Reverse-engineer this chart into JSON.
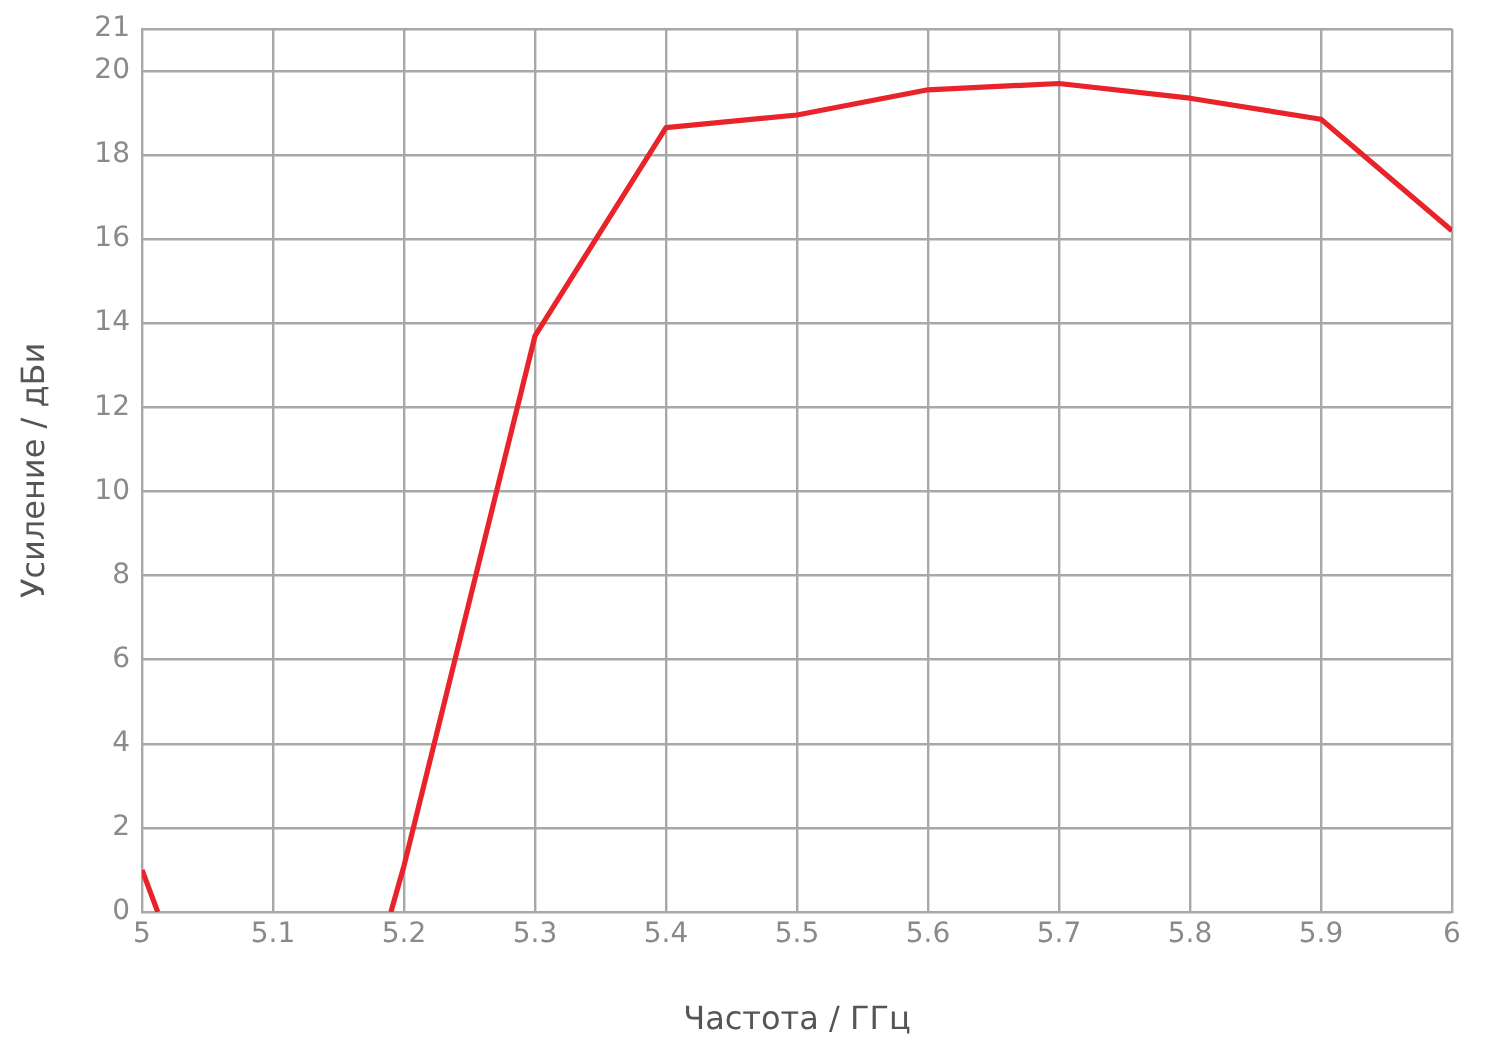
{
  "chart_data": {
    "type": "line",
    "xlabel": "Частота / ГГц",
    "ylabel": "Усиление / дБи",
    "x": [
      5,
      5.012,
      5.1,
      5.19,
      5.2,
      5.3,
      5.4,
      5.5,
      5.6,
      5.7,
      5.8,
      5.9,
      6
    ],
    "series": [
      {
        "color": "#e8232a",
        "values": [
          1,
          0,
          null,
          0,
          1.1,
          13.7,
          18.65,
          18.95,
          19.55,
          19.7,
          19.35,
          18.85,
          16.2
        ]
      }
    ],
    "xlim": [
      5,
      6
    ],
    "xticks": [
      5,
      5.1,
      5.2,
      5.3,
      5.4,
      5.5,
      5.6,
      5.7,
      5.8,
      5.9,
      6
    ],
    "ylim": [
      0,
      21
    ],
    "yticks": [
      0,
      2,
      4,
      6,
      8,
      10,
      12,
      14,
      16,
      18,
      20,
      21
    ],
    "grid": true,
    "legend": false,
    "marker": "none",
    "line_style": "solid"
  }
}
